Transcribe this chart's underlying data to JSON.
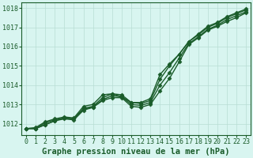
{
  "title": "Graphe pression niveau de la mer (hPa)",
  "background_color": "#d8f5f0",
  "grid_color": "#b8ddd4",
  "line_color": "#1a5c2a",
  "x_labels": [
    "0",
    "1",
    "2",
    "3",
    "4",
    "5",
    "6",
    "7",
    "8",
    "9",
    "10",
    "11",
    "12",
    "13",
    "14",
    "15",
    "16",
    "17",
    "18",
    "19",
    "20",
    "21",
    "22",
    "23"
  ],
  "ylim": [
    1011.4,
    1018.3
  ],
  "yticks": [
    1012,
    1013,
    1014,
    1015,
    1016,
    1017,
    1018
  ],
  "series": [
    [
      1011.75,
      1011.75,
      1011.95,
      1012.15,
      1012.25,
      1012.2,
      1012.7,
      1012.85,
      1013.2,
      1013.35,
      1013.35,
      1012.9,
      1012.85,
      1013.0,
      1013.7,
      1014.35,
      1015.2,
      1016.1,
      1016.45,
      1016.85,
      1017.05,
      1017.3,
      1017.5,
      1017.75
    ],
    [
      1011.75,
      1011.75,
      1011.95,
      1012.15,
      1012.3,
      1012.25,
      1012.75,
      1012.85,
      1013.25,
      1013.45,
      1013.4,
      1013.0,
      1012.95,
      1013.1,
      1014.0,
      1014.65,
      1015.4,
      1016.15,
      1016.5,
      1016.9,
      1017.1,
      1017.4,
      1017.6,
      1017.8
    ],
    [
      1011.75,
      1011.75,
      1012.05,
      1012.2,
      1012.3,
      1012.25,
      1012.8,
      1012.9,
      1013.35,
      1013.55,
      1013.5,
      1013.1,
      1013.05,
      1013.2,
      1014.3,
      1015.0,
      1015.6,
      1016.25,
      1016.6,
      1017.0,
      1017.2,
      1017.5,
      1017.7,
      1017.9
    ],
    [
      1011.75,
      1011.8,
      1012.1,
      1012.25,
      1012.35,
      1012.3,
      1012.9,
      1013.0,
      1013.5,
      1013.55,
      1013.4,
      1013.1,
      1013.1,
      1013.3,
      1014.55,
      1015.1,
      1015.6,
      1016.25,
      1016.65,
      1017.05,
      1017.25,
      1017.55,
      1017.75,
      1017.95
    ]
  ],
  "marker": "D",
  "markersize": 2.5,
  "linewidth": 1.0,
  "title_fontsize": 7.5,
  "tick_fontsize": 6.0,
  "figsize": [
    3.2,
    2.0
  ],
  "dpi": 100
}
